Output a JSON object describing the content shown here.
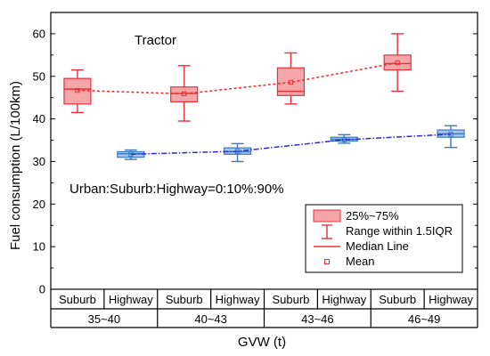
{
  "chart_data": {
    "type": "box",
    "title": "Tractor",
    "annotation": "Urban:Suburb:Highway=0:10%:90%",
    "xlabel": "GVW (t)",
    "ylabel": "Fuel consumption (L/100km)",
    "ylim": [
      0,
      65
    ],
    "yticks": [
      0,
      10,
      20,
      30,
      40,
      50,
      60
    ],
    "groups": [
      "35~40",
      "40~43",
      "43~46",
      "46~49"
    ],
    "subcategories": [
      "Suburb",
      "Highway"
    ],
    "colors": {
      "suburb_fill": "#f4a6a8",
      "suburb_stroke": "#e8313a",
      "highway_fill": "#a9c6ea",
      "highway_stroke": "#3a78c2",
      "suburb_line": "#ee2b2b",
      "highway_line": "#2b2bd6"
    },
    "series": [
      {
        "name": "Suburb",
        "boxes": [
          {
            "group": "35~40",
            "whisker_low": 41.5,
            "q1": 43.5,
            "median": 47,
            "q3": 49.5,
            "whisker_high": 51.5,
            "mean": 46.7
          },
          {
            "group": "40~43",
            "whisker_low": 39.5,
            "q1": 44,
            "median": 46,
            "q3": 47.5,
            "whisker_high": 52.5,
            "mean": 45.9
          },
          {
            "group": "43~46",
            "whisker_low": 43.5,
            "q1": 45.5,
            "median": 46.5,
            "q3": 52,
            "whisker_high": 55.5,
            "mean": 48.6
          },
          {
            "group": "46~49",
            "whisker_low": 46.5,
            "q1": 51.5,
            "median": 53,
            "q3": 55,
            "whisker_high": 60,
            "mean": 53.2
          }
        ]
      },
      {
        "name": "Highway",
        "boxes": [
          {
            "group": "35~40",
            "whisker_low": 30.5,
            "q1": 31,
            "median": 31.8,
            "q3": 32.3,
            "whisker_high": 32.7,
            "mean": 31.7
          },
          {
            "group": "40~43",
            "whisker_low": 30,
            "q1": 31.7,
            "median": 32.3,
            "q3": 33.2,
            "whisker_high": 34.2,
            "mean": 32.4
          },
          {
            "group": "43~46",
            "whisker_low": 34.3,
            "q1": 34.8,
            "median": 35.2,
            "q3": 35.7,
            "whisker_high": 36.3,
            "mean": 35.1
          },
          {
            "group": "46~49",
            "whisker_low": 33.3,
            "q1": 35.7,
            "median": 36.5,
            "q3": 37.4,
            "whisker_high": 38.4,
            "mean": 36.4
          }
        ]
      }
    ],
    "legend": {
      "position": "bottom-right",
      "entries": [
        "25%~75%",
        "Range within 1.5IQR",
        "Median Line",
        "Mean"
      ]
    }
  }
}
